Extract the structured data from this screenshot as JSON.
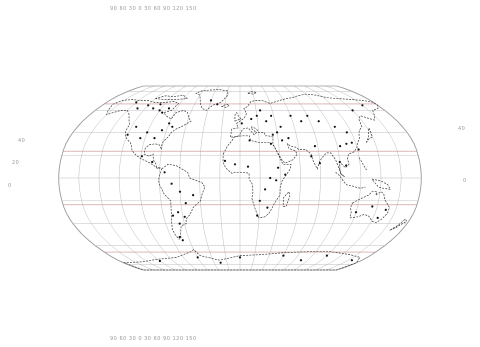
{
  "map": {
    "projection": "Robinson (world, graticule shown)",
    "colors": {
      "background": "#ffffff",
      "graticule": "#bdbdbd",
      "outline": "#9a9a9a",
      "tropic_lines": "#c98c8c",
      "coastline": "#3c3c3c",
      "land_detail": "#111111"
    },
    "labels": {
      "top_scale": "90 60 30 0 30 60 90 120 150",
      "bottom_scale": "90 60 30 0 30 60 90 120 150",
      "left_lat_1": "40",
      "left_lat_2": "20",
      "left_lat_3": "0",
      "right_lat_1": "40",
      "right_lat_2": "0"
    }
  }
}
